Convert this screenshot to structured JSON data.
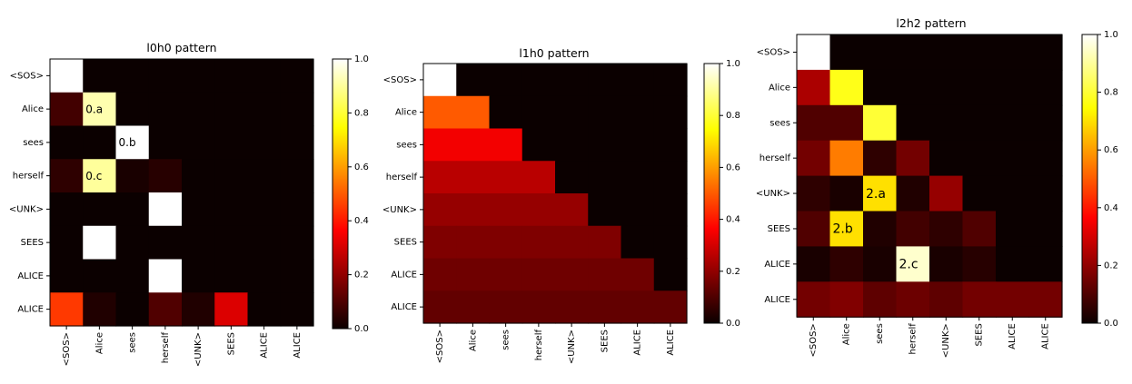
{
  "chart_data": [
    {
      "type": "heatmap",
      "title": "l0h0 pattern",
      "colormap": "hot",
      "x_labels": [
        "<SOS>",
        "Alice",
        "sees",
        "herself",
        "<UNK>",
        "SEES",
        "ALICE",
        "ALICE"
      ],
      "y_labels": [
        "<SOS>",
        "Alice",
        "sees",
        "herself",
        "<UNK>",
        "SEES",
        "ALICE",
        "ALICE"
      ],
      "colorbar": {
        "range": [
          0.0,
          1.0
        ],
        "ticks": [
          "0.0",
          "0.2",
          "0.4",
          "0.6",
          "0.8",
          "1.0"
        ]
      },
      "values": [
        [
          1.0,
          0.0,
          0.0,
          0.0,
          0.0,
          0.0,
          0.0,
          0.0
        ],
        [
          0.08,
          0.92,
          0.0,
          0.0,
          0.0,
          0.0,
          0.0,
          0.0
        ],
        [
          0.0,
          0.0,
          1.0,
          0.0,
          0.0,
          0.0,
          0.0,
          0.0
        ],
        [
          0.05,
          0.9,
          0.02,
          0.04,
          0.0,
          0.0,
          0.0,
          0.0
        ],
        [
          0.0,
          0.0,
          0.0,
          1.0,
          0.0,
          0.0,
          0.0,
          0.0
        ],
        [
          0.0,
          1.0,
          0.0,
          0.0,
          0.0,
          0.0,
          0.0,
          0.0
        ],
        [
          0.0,
          0.0,
          0.0,
          1.0,
          0.0,
          0.0,
          0.0,
          0.0
        ],
        [
          0.45,
          0.03,
          0.0,
          0.1,
          0.03,
          0.3,
          0.0,
          0.0
        ]
      ],
      "annotations": [
        {
          "row": 1,
          "col": 1,
          "text": "0.a"
        },
        {
          "row": 2,
          "col": 2,
          "text": "0.b"
        },
        {
          "row": 3,
          "col": 1,
          "text": "0.c"
        }
      ]
    },
    {
      "type": "heatmap",
      "title": "l1h0 pattern",
      "colormap": "hot",
      "x_labels": [
        "<SOS>",
        "Alice",
        "sees",
        "herself",
        "<UNK>",
        "SEES",
        "ALICE",
        "ALICE"
      ],
      "y_labels": [
        "<SOS>",
        "Alice",
        "sees",
        "herself",
        "<UNK>",
        "SEES",
        "ALICE",
        "ALICE"
      ],
      "colorbar": {
        "range": [
          0.0,
          1.0
        ],
        "ticks": [
          "0.0",
          "0.2",
          "0.4",
          "0.6",
          "0.8",
          "1.0"
        ]
      },
      "values": [
        [
          1.0,
          0.0,
          0.0,
          0.0,
          0.0,
          0.0,
          0.0,
          0.0
        ],
        [
          0.5,
          0.5,
          0.0,
          0.0,
          0.0,
          0.0,
          0.0,
          0.0
        ],
        [
          0.333,
          0.333,
          0.333,
          0.0,
          0.0,
          0.0,
          0.0,
          0.0
        ],
        [
          0.25,
          0.25,
          0.25,
          0.25,
          0.0,
          0.0,
          0.0,
          0.0
        ],
        [
          0.2,
          0.2,
          0.2,
          0.2,
          0.2,
          0.0,
          0.0,
          0.0
        ],
        [
          0.167,
          0.167,
          0.167,
          0.167,
          0.167,
          0.167,
          0.0,
          0.0
        ],
        [
          0.143,
          0.143,
          0.143,
          0.143,
          0.143,
          0.143,
          0.143,
          0.0
        ],
        [
          0.125,
          0.125,
          0.125,
          0.125,
          0.125,
          0.125,
          0.125,
          0.125
        ]
      ],
      "annotations": []
    },
    {
      "type": "heatmap",
      "title": "l2h2 pattern",
      "colormap": "hot",
      "x_labels": [
        "<SOS>",
        "Alice",
        "sees",
        "herself",
        "<UNK>",
        "SEES",
        "ALICE",
        "ALICE"
      ],
      "y_labels": [
        "<SOS>",
        "Alice",
        "sees",
        "herself",
        "<UNK>",
        "SEES",
        "ALICE",
        "ALICE"
      ],
      "colorbar": {
        "range": [
          0.0,
          1.0
        ],
        "ticks": [
          "0.0",
          "0.2",
          "0.4",
          "0.6",
          "0.8",
          "1.0"
        ]
      },
      "values": [
        [
          1.0,
          0.0,
          0.0,
          0.0,
          0.0,
          0.0,
          0.0,
          0.0
        ],
        [
          0.23,
          0.77,
          0.0,
          0.0,
          0.0,
          0.0,
          0.0,
          0.0
        ],
        [
          0.1,
          0.1,
          0.8,
          0.0,
          0.0,
          0.0,
          0.0,
          0.0
        ],
        [
          0.15,
          0.55,
          0.05,
          0.15,
          0.0,
          0.0,
          0.0,
          0.0
        ],
        [
          0.05,
          0.02,
          0.7,
          0.03,
          0.2,
          0.0,
          0.0,
          0.0
        ],
        [
          0.1,
          0.7,
          0.03,
          0.08,
          0.05,
          0.1,
          0.0,
          0.0
        ],
        [
          0.02,
          0.05,
          0.02,
          0.95,
          0.02,
          0.04,
          0.0,
          0.0
        ],
        [
          0.15,
          0.17,
          0.12,
          0.14,
          0.12,
          0.15,
          0.15,
          0.15
        ]
      ],
      "annotations": [
        {
          "row": 4,
          "col": 2,
          "text": "2.a"
        },
        {
          "row": 5,
          "col": 1,
          "text": "2.b"
        },
        {
          "row": 6,
          "col": 3,
          "text": "2.c"
        }
      ]
    }
  ]
}
